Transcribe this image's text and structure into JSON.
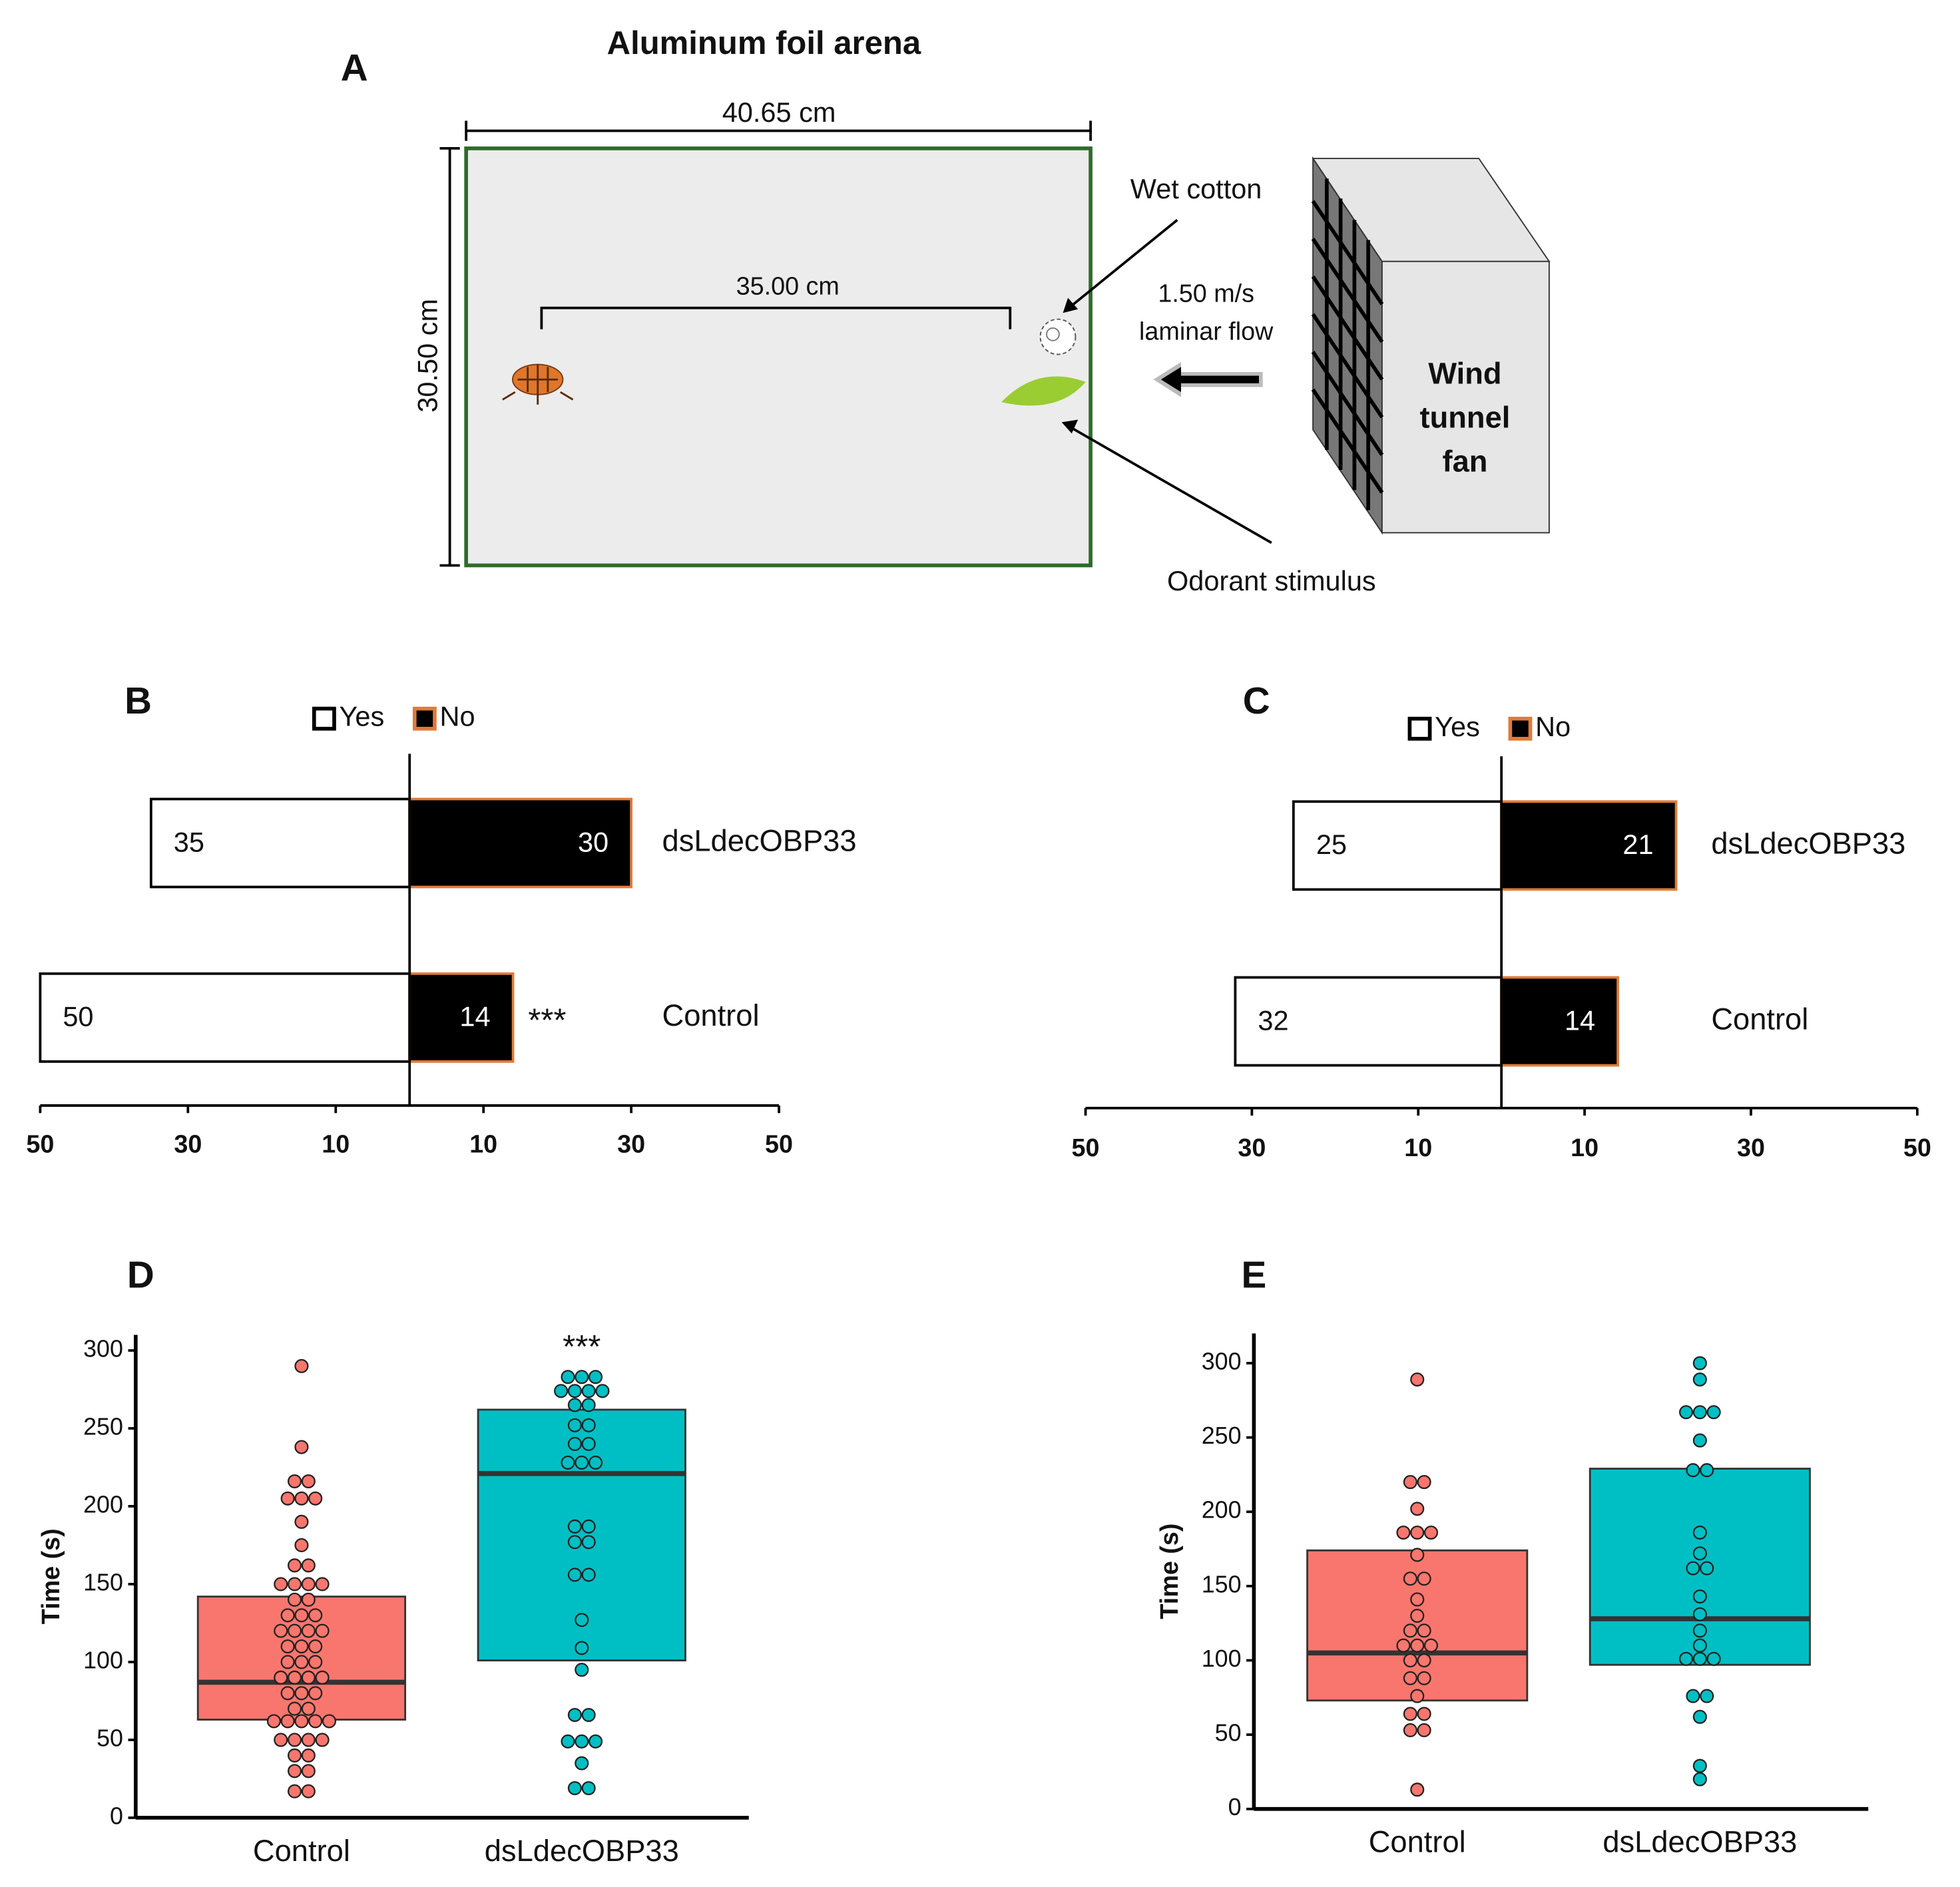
{
  "diagram": {
    "panel_label": "A",
    "title": "Aluminum foil arena",
    "width_label": "40.65 cm",
    "height_label": "30.50 cm",
    "distance_label": "35.00 cm",
    "cotton_label": "Wet cotton",
    "flow_label": [
      "1.50 m/s",
      "laminar flow"
    ],
    "fan_label": [
      "Wind",
      "tunnel",
      "fan"
    ],
    "stimulus_label": "Odorant stimulus"
  },
  "chart_data": [
    {
      "type": "diverging_bar",
      "panel_label": "B",
      "categories": [
        "dsLdecOBP33",
        "Control"
      ],
      "series": [
        {
          "name": "Yes",
          "color": "#ffffff",
          "edge": "#000000",
          "values": [
            35,
            50
          ]
        },
        {
          "name": "No",
          "color": "#000000",
          "edge": "#e07b39",
          "values": [
            30,
            14
          ]
        }
      ],
      "significance": [
        null,
        "***"
      ],
      "xlim": [
        -50,
        50
      ],
      "xticks": [
        {
          "value": -50,
          "label": "50"
        },
        {
          "value": -30,
          "label": "30"
        },
        {
          "value": -10,
          "label": "10"
        },
        10,
        30,
        50
      ]
    },
    {
      "type": "diverging_bar",
      "panel_label": "C",
      "categories": [
        "dsLdecOBP33",
        "Control"
      ],
      "series": [
        {
          "name": "Yes",
          "color": "#ffffff",
          "edge": "#000000",
          "values": [
            25,
            32
          ]
        },
        {
          "name": "No",
          "color": "#000000",
          "edge": "#e07b39",
          "values": [
            21,
            14
          ]
        }
      ],
      "significance": [
        null,
        null
      ],
      "xlim": [
        -50,
        50
      ],
      "xticks": [
        {
          "value": -50,
          "label": "50"
        },
        {
          "value": -30,
          "label": "30"
        },
        {
          "value": -10,
          "label": "10"
        },
        10,
        30,
        50
      ]
    },
    {
      "type": "box",
      "panel_label": "D",
      "y_label": "Time (s)",
      "categories": [
        "Control",
        "dsLdecOBP33"
      ],
      "colors": [
        "#f8766d",
        "#00bfc4"
      ],
      "q1": [
        63,
        101
      ],
      "median": [
        87,
        221
      ],
      "q3": [
        142,
        262
      ],
      "significance": [
        null,
        "***"
      ],
      "points": [
        [
          290,
          238,
          216,
          216,
          205,
          205,
          205,
          190,
          175,
          162,
          162,
          150,
          150,
          150,
          150,
          140,
          140,
          130,
          130,
          130,
          120,
          120,
          120,
          120,
          110,
          110,
          110,
          100,
          100,
          100,
          90,
          90,
          90,
          90,
          80,
          80,
          80,
          70,
          70,
          62,
          62,
          62,
          62,
          62,
          50,
          50,
          50,
          50,
          40,
          40,
          30,
          30,
          17,
          17
        ],
        [
          283,
          283,
          283,
          274,
          274,
          274,
          274,
          265,
          265,
          252,
          252,
          240,
          240,
          228,
          228,
          228,
          187,
          187,
          177,
          177,
          156,
          156,
          127,
          109,
          95,
          66,
          66,
          49,
          49,
          49,
          35,
          19,
          19
        ]
      ],
      "ylim": [
        0,
        310
      ],
      "yticks": [
        0,
        50,
        100,
        150,
        200,
        250,
        300
      ]
    },
    {
      "type": "box",
      "panel_label": "E",
      "y_label": "Time (s)",
      "categories": [
        "Control",
        "dsLdecOBP33"
      ],
      "colors": [
        "#f8766d",
        "#00bfc4"
      ],
      "q1": [
        73,
        97
      ],
      "median": [
        105,
        128
      ],
      "q3": [
        174,
        229
      ],
      "significance": [
        null,
        null
      ],
      "points": [
        [
          289,
          220,
          220,
          202,
          186,
          186,
          186,
          171,
          155,
          155,
          141,
          130,
          120,
          120,
          110,
          110,
          110,
          100,
          100,
          88,
          88,
          76,
          64,
          64,
          53,
          53,
          13
        ],
        [
          300,
          289,
          267,
          267,
          267,
          248,
          228,
          228,
          186,
          172,
          162,
          162,
          143,
          131,
          120,
          110,
          101,
          101,
          101,
          76,
          76,
          62,
          29,
          20
        ]
      ],
      "ylim": [
        0,
        320
      ],
      "yticks": [
        0,
        50,
        100,
        150,
        200,
        250,
        300
      ]
    }
  ]
}
